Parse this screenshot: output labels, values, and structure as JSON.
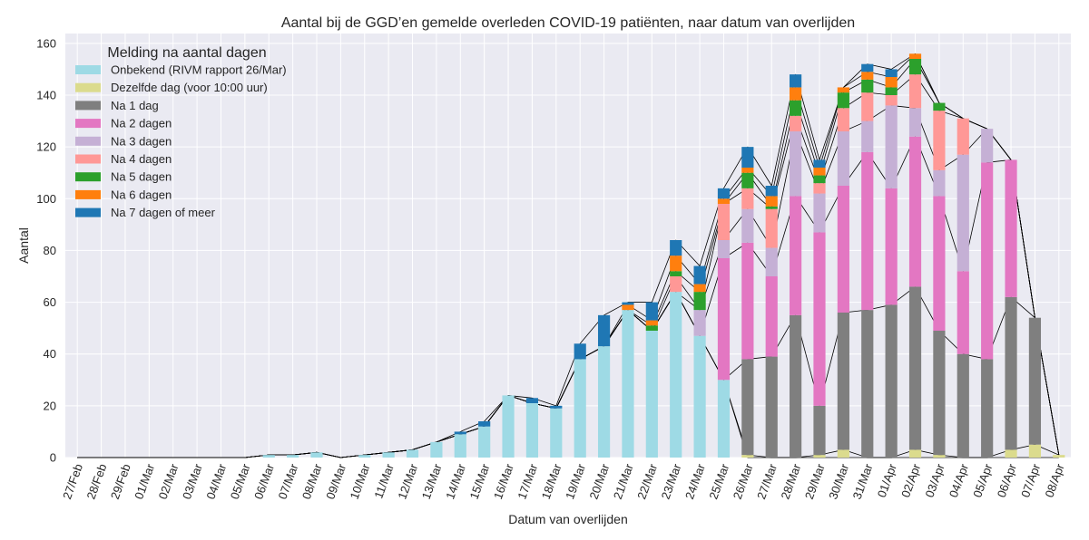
{
  "chart_data": {
    "type": "bar",
    "stacked": true,
    "title": "Aantal bij de GGD’en gemelde overleden COVID-19 patiënten, naar datum van overlijden",
    "xlabel": "Datum van overlijden",
    "ylabel": "Aantal",
    "ylim": [
      0,
      163.8
    ],
    "yticks": [
      0,
      20,
      40,
      60,
      80,
      100,
      120,
      140,
      160
    ],
    "grid": true,
    "connector_lines": true,
    "legend": {
      "title": "Melding na aantal dagen",
      "placement": "top-left"
    },
    "categories": [
      "27/Feb",
      "28/Feb",
      "29/Feb",
      "01/Mar",
      "02/Mar",
      "03/Mar",
      "04/Mar",
      "05/Mar",
      "06/Mar",
      "07/Mar",
      "08/Mar",
      "09/Mar",
      "10/Mar",
      "11/Mar",
      "12/Mar",
      "13/Mar",
      "14/Mar",
      "15/Mar",
      "16/Mar",
      "17/Mar",
      "18/Mar",
      "19/Mar",
      "20/Mar",
      "21/Mar",
      "22/Mar",
      "23/Mar",
      "24/Mar",
      "25/Mar",
      "26/Mar",
      "27/Mar",
      "28/Mar",
      "29/Mar",
      "30/Mar",
      "31/Mar",
      "01/Apr",
      "02/Apr",
      "03/Apr",
      "04/Apr",
      "05/Apr",
      "06/Apr",
      "07/Apr",
      "08/Apr"
    ],
    "series": [
      {
        "name": "Onbekend (RIVM rapport 26/Mar)",
        "color": "#9edae5",
        "values": [
          0,
          0,
          0,
          0,
          0,
          0,
          0,
          0,
          1,
          1,
          2,
          0,
          1,
          2,
          3,
          6,
          9,
          12,
          24,
          21,
          19,
          38,
          43,
          57,
          49,
          64,
          47,
          30,
          0,
          0,
          0,
          0,
          0,
          0,
          0,
          0,
          0,
          0,
          0,
          0,
          0,
          0
        ]
      },
      {
        "name": "Dezelfde dag (voor 10:00 uur)",
        "color": "#dbdb8d",
        "values": [
          0,
          0,
          0,
          0,
          0,
          0,
          0,
          0,
          0,
          0,
          0,
          0,
          0,
          0,
          0,
          0,
          0,
          0,
          0,
          0,
          0,
          0,
          0,
          0,
          0,
          0,
          0,
          0,
          1,
          0,
          0,
          1,
          3,
          0,
          0,
          3,
          1,
          0,
          0,
          3,
          5,
          1
        ]
      },
      {
        "name": "Na 1 dag",
        "color": "#7f7f7f",
        "values": [
          0,
          0,
          0,
          0,
          0,
          0,
          0,
          0,
          0,
          0,
          0,
          0,
          0,
          0,
          0,
          0,
          0,
          0,
          0,
          0,
          0,
          0,
          0,
          0,
          0,
          0,
          0,
          0,
          37,
          39,
          55,
          19,
          53,
          57,
          59,
          63,
          48,
          40,
          38,
          59,
          49,
          0
        ]
      },
      {
        "name": "Na 2 dagen",
        "color": "#e377c2",
        "values": [
          0,
          0,
          0,
          0,
          0,
          0,
          0,
          0,
          0,
          0,
          0,
          0,
          0,
          0,
          0,
          0,
          0,
          0,
          0,
          0,
          0,
          0,
          0,
          0,
          0,
          0,
          0,
          47,
          45,
          31,
          46,
          67,
          49,
          61,
          45,
          58,
          52,
          32,
          76,
          53,
          0,
          0
        ]
      },
      {
        "name": "Na 3 dagen",
        "color": "#c5b0d5",
        "values": [
          0,
          0,
          0,
          0,
          0,
          0,
          0,
          0,
          0,
          0,
          0,
          0,
          0,
          0,
          0,
          0,
          0,
          0,
          0,
          0,
          0,
          0,
          0,
          0,
          0,
          0,
          10,
          7,
          13,
          11,
          25,
          15,
          21,
          12,
          32,
          11,
          10,
          45,
          13,
          0,
          0,
          0
        ]
      },
      {
        "name": "Na 4 dagen",
        "color": "#ff9896",
        "values": [
          0,
          0,
          0,
          0,
          0,
          0,
          0,
          0,
          0,
          0,
          0,
          0,
          0,
          0,
          0,
          0,
          0,
          0,
          0,
          0,
          0,
          0,
          0,
          0,
          0,
          6,
          0,
          14,
          8,
          15,
          6,
          4,
          9,
          11,
          4,
          13,
          23,
          14,
          0,
          0,
          0,
          0
        ]
      },
      {
        "name": "Na 5 dagen",
        "color": "#2ca02c",
        "values": [
          0,
          0,
          0,
          0,
          0,
          0,
          0,
          0,
          0,
          0,
          0,
          0,
          0,
          0,
          0,
          0,
          0,
          0,
          0,
          0,
          0,
          0,
          0,
          0,
          2,
          2,
          7,
          0,
          6,
          1,
          6,
          3,
          6,
          5,
          3,
          6,
          3,
          0,
          0,
          0,
          0,
          0
        ]
      },
      {
        "name": "Na 6 dagen",
        "color": "#ff7f0e",
        "values": [
          0,
          0,
          0,
          0,
          0,
          0,
          0,
          0,
          0,
          0,
          0,
          0,
          0,
          0,
          0,
          0,
          0,
          0,
          0,
          0,
          0,
          0,
          0,
          2,
          2,
          6,
          3,
          2,
          2,
          4,
          5,
          3,
          2,
          3,
          4,
          2,
          0,
          0,
          0,
          0,
          0,
          0
        ]
      },
      {
        "name": "Na 7 dagen of meer",
        "color": "#1f77b4",
        "values": [
          0,
          0,
          0,
          0,
          0,
          0,
          0,
          0,
          0,
          0,
          0,
          0,
          0,
          0,
          0,
          0,
          1,
          2,
          0,
          2,
          1,
          6,
          12,
          1,
          7,
          6,
          7,
          4,
          8,
          4,
          5,
          3,
          0,
          3,
          3,
          0,
          0,
          0,
          0,
          0,
          0,
          0
        ]
      }
    ]
  }
}
